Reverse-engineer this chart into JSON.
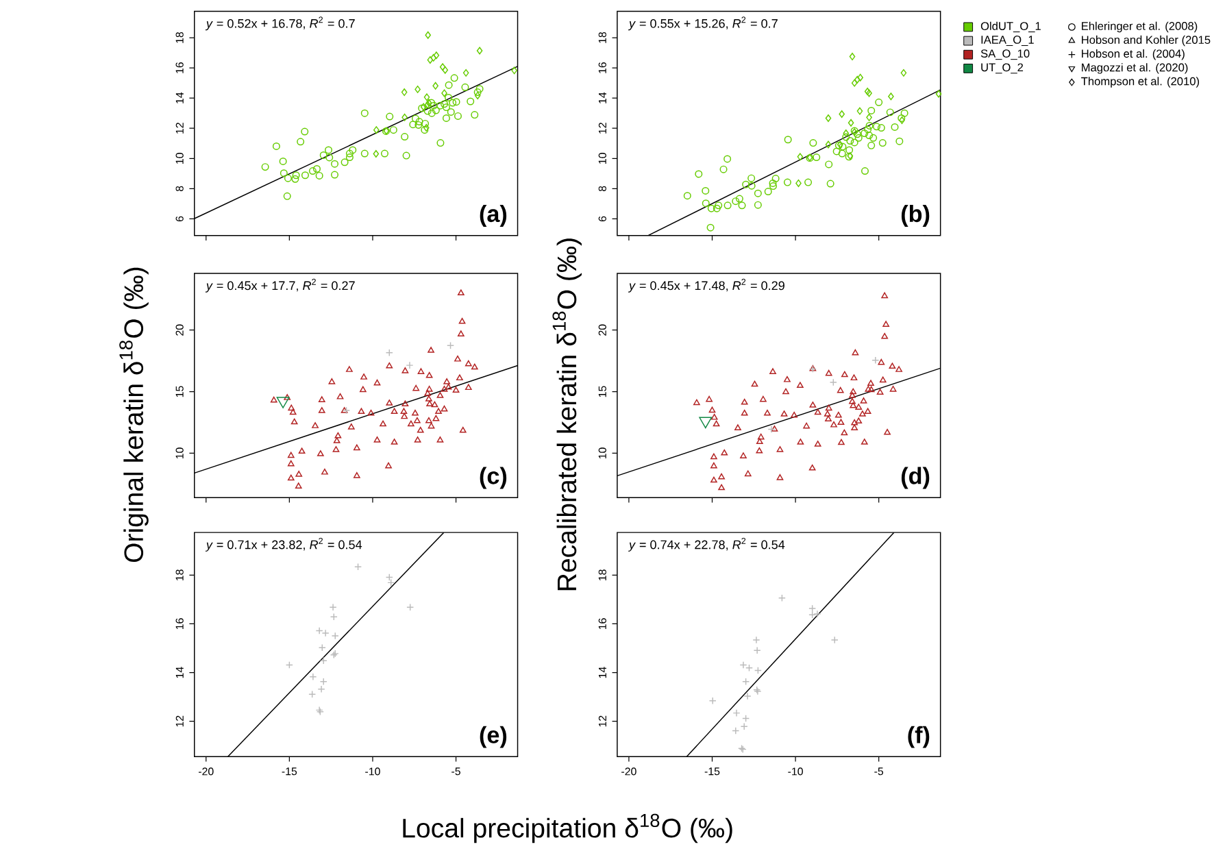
{
  "chart_data": [
    {
      "type": "scatter",
      "xlim": [
        -20.7,
        -1.3
      ],
      "ylim": [
        4.9,
        19.75
      ],
      "xticks": [
        -20,
        -15,
        -10,
        -5
      ],
      "yticks": [
        6,
        8,
        10,
        12,
        14,
        16,
        18
      ],
      "tick_labels": "y",
      "annotations": [
        "*y* = 0.52x + 16.78, *R*$^{2}$ = 0.7",
        "(a)"
      ],
      "series": [
        {
          "color": "#66cc00",
          "marker": "circle",
          "x": [
            -16.45,
            -15.78,
            -15.38,
            -15.33,
            -15.08,
            -15.13,
            -14.65,
            -14.6,
            -14.33,
            -14.08,
            -14.05,
            -13.6,
            -13.35,
            -13.2,
            -12.95,
            -12.65,
            -12.6,
            -12.28,
            -12.28,
            -11.68,
            -11.38,
            -11.38,
            -11.2,
            -10.48,
            -10.48,
            -9.28,
            -8.98,
            -8.75,
            -9.2,
            -8.08,
            -7.98,
            -7.58,
            -7.43,
            -7.25,
            -6.85,
            -6.88,
            -5.93,
            -6.48,
            -6.2,
            -5.95,
            -5.58,
            -5.58,
            -5.45,
            -5.3,
            -5.1,
            -4.98,
            -4.88,
            -4.45,
            -4.13,
            -3.88,
            -3.7,
            -3.58,
            -5.43,
            -5.7,
            -6.33,
            -7.05,
            -6.7,
            -7.2,
            -6.45,
            -5.2
          ],
          "values": [
            9.44,
            10.81,
            9.81,
            9.03,
            8.69,
            7.5,
            8.64,
            8.89,
            11.11,
            11.78,
            8.89,
            9.17,
            9.31,
            8.86,
            10.22,
            10.56,
            10.06,
            9.64,
            8.92,
            9.75,
            10.08,
            10.33,
            10.56,
            13.0,
            10.33,
            10.33,
            12.78,
            11.89,
            11.81,
            11.44,
            10.19,
            12.25,
            12.64,
            12.22,
            12.31,
            11.89,
            11.03,
            13.69,
            13.19,
            13.5,
            12.67,
            13.39,
            14.03,
            13.08,
            15.33,
            13.75,
            12.81,
            14.72,
            13.78,
            12.89,
            14.39,
            14.61,
            14.86,
            13.61,
            13.5,
            13.33,
            13.14,
            12.44,
            13.0,
            13.69
          ]
        },
        {
          "color": "#66cc00",
          "marker": "diamond",
          "x": [
            -6.68,
            -6.55,
            -6.35,
            -6.18,
            -5.8,
            -5.65,
            -4.4,
            -3.58,
            -1.5,
            -8.1,
            -7.3,
            -6.23,
            -5.7,
            -6.75,
            -6.63,
            -6.95,
            -8.08,
            -9.78,
            -9.18,
            -9.8,
            -6.78,
            -3.7,
            -6.7
          ],
          "values": [
            18.17,
            16.53,
            16.67,
            16.83,
            16.06,
            15.86,
            15.67,
            17.14,
            15.83,
            14.39,
            14.58,
            14.81,
            14.33,
            14.06,
            13.69,
            13.42,
            12.72,
            11.89,
            11.83,
            10.31,
            12.03,
            14.17,
            13.56
          ]
        },
        {
          "type": "line",
          "color": "#000000",
          "x": [
            -20.7,
            -1.3
          ],
          "values": [
            6.02,
            16.1
          ]
        }
      ]
    },
    {
      "type": "scatter",
      "xlim": [
        -20.7,
        -1.3
      ],
      "ylim": [
        4.9,
        19.75
      ],
      "xticks": [
        -20,
        -15,
        -10,
        -5
      ],
      "yticks": [
        6,
        8,
        10,
        12,
        14,
        16,
        18
      ],
      "tick_labels": "y",
      "annotations": [
        "*y* = 0.55x + 15.26, *R*$^{2}$ = 0.7",
        "(b)"
      ],
      "series": [
        {
          "color": "#66cc00",
          "marker": "circle",
          "x": [
            -16.49,
            -15.81,
            -15.4,
            -15.38,
            -15.1,
            -15.05,
            -14.72,
            -14.62,
            -14.32,
            -14.09,
            -14.07,
            -13.59,
            -13.36,
            -13.21,
            -12.98,
            -12.65,
            -12.63,
            -12.25,
            -12.25,
            -11.64,
            -11.34,
            -11.36,
            -11.19,
            -10.45,
            -10.48,
            -9.24,
            -8.94,
            -8.74,
            -9.14,
            -8.0,
            -7.9,
            -7.53,
            -7.4,
            -7.2,
            -6.77,
            -6.79,
            -5.83,
            -6.46,
            -6.21,
            -5.86,
            -5.45,
            -5.58,
            -5.56,
            -5.33,
            -5.0,
            -4.85,
            -4.77,
            -4.32,
            -4.04,
            -3.76,
            -3.46,
            -3.64,
            -5.45,
            -5.66,
            -6.29,
            -6.97,
            -6.72,
            -7.17,
            -6.46,
            -5.13
          ],
          "values": [
            7.53,
            8.97,
            7.86,
            7.03,
            5.42,
            6.69,
            6.69,
            6.89,
            9.28,
            9.97,
            6.89,
            7.17,
            7.33,
            6.89,
            8.28,
            8.69,
            8.19,
            7.69,
            6.92,
            7.81,
            8.17,
            8.36,
            8.67,
            11.25,
            8.42,
            8.42,
            11.03,
            10.08,
            10.03,
            9.61,
            8.33,
            10.47,
            10.86,
            10.33,
            10.56,
            10.11,
            9.17,
            11.83,
            11.36,
            11.67,
            10.86,
            11.53,
            12.17,
            11.36,
            13.72,
            12.03,
            11.03,
            13.06,
            12.08,
            11.14,
            13.0,
            12.67,
            13.17,
            11.92,
            11.61,
            11.42,
            11.17,
            10.78,
            11.06,
            12.11
          ]
        },
        {
          "color": "#66cc00",
          "marker": "diamond",
          "x": [
            -6.59,
            -6.46,
            -6.29,
            -6.11,
            -5.68,
            -5.58,
            -4.27,
            -3.51,
            -1.41,
            -8.03,
            -7.22,
            -6.14,
            -5.58,
            -6.67,
            -6.97,
            -7.32,
            -8.03,
            -9.72,
            -9.14,
            -9.82,
            -6.72,
            -3.61,
            -6.46
          ],
          "values": [
            16.75,
            15.0,
            15.22,
            15.36,
            14.44,
            14.33,
            14.11,
            15.67,
            14.28,
            12.67,
            12.94,
            13.14,
            12.72,
            12.36,
            11.67,
            10.92,
            10.92,
            10.11,
            10.06,
            8.36,
            10.17,
            12.53,
            11.75
          ]
        },
        {
          "type": "line",
          "color": "#000000",
          "x": [
            -18.84,
            -1.3
          ],
          "values": [
            4.9,
            14.55
          ]
        }
      ]
    },
    {
      "type": "scatter",
      "xlim": [
        -20.7,
        -1.3
      ],
      "ylim": [
        6.4,
        24.6
      ],
      "xticks": [
        -20,
        -15,
        -10,
        -5
      ],
      "yticks": [
        10,
        15,
        20
      ],
      "tick_labels": "y",
      "ylabel": "Original keratin δ$^{18}$O (‰)",
      "annotations": [
        "*y* = 0.45x + 17.7, *R*$^{2}$ = 0.27",
        "(c)"
      ],
      "series": [
        {
          "color": "#b22222",
          "marker": "triangle",
          "x": [
            -4.7,
            -4.63,
            -4.7,
            -6.5,
            -4.9,
            -4.25,
            -3.88,
            -9.0,
            -8.05,
            -7.1,
            -6.6,
            -4.78,
            -11.4,
            -10.53,
            -9.73,
            -12.45,
            -10.58,
            -11.95,
            -13.05,
            -15.93,
            -15.13,
            -14.88,
            -14.78,
            -14.7,
            -13.05,
            -11.7,
            -10.68,
            -10.1,
            -13.45,
            -11.28,
            -9.38,
            -9.0,
            -8.7,
            -8.05,
            -8.13,
            -8.1,
            -7.4,
            -6.6,
            -6.63,
            -6.58,
            -6.28,
            -5.95,
            -5.55,
            -5.45,
            -5.0,
            -4.25,
            -6.05,
            -5.7,
            -7.45,
            -7.7,
            -7.33,
            -7.13,
            -6.63,
            -6.48,
            -6.2,
            -4.58,
            -5.95,
            -7.3,
            -8.7,
            -9.73,
            -12.08,
            -12.15,
            -12.2,
            -10.95,
            -13.13,
            -14.25,
            -14.9,
            -14.9,
            -12.88,
            -10.95,
            -9.05,
            -14.9,
            -14.43,
            -14.45,
            -5.7,
            -6.7
          ],
          "values": [
            22.99,
            20.68,
            19.66,
            18.33,
            17.62,
            17.24,
            16.97,
            17.07,
            16.67,
            16.6,
            16.29,
            16.09,
            16.77,
            16.16,
            15.68,
            15.78,
            15.14,
            14.56,
            14.32,
            14.29,
            14.49,
            13.64,
            13.3,
            12.52,
            13.44,
            13.44,
            13.37,
            13.23,
            12.21,
            12.11,
            12.35,
            14.05,
            13.37,
            13.98,
            13.37,
            12.96,
            15.24,
            15.17,
            14.39,
            13.98,
            13.91,
            14.66,
            15.78,
            15.34,
            15.1,
            15.31,
            13.37,
            13.57,
            13.23,
            12.35,
            12.62,
            11.84,
            12.62,
            12.18,
            12.79,
            11.84,
            11.05,
            11.05,
            10.88,
            11.05,
            11.39,
            10.99,
            10.27,
            10.41,
            9.93,
            10.14,
            9.8,
            9.12,
            8.44,
            8.16,
            8.95,
            7.96,
            8.27,
            7.31,
            15.17,
            14.83
          ]
        },
        {
          "color": "#bbbbbb",
          "marker": "cross",
          "x": [
            -9.0,
            -7.78,
            -5.33,
            -11.58
          ],
          "values": [
            18.16,
            17.14,
            18.74,
            13.47
          ]
        },
        {
          "color": "#118844",
          "marker": "triangle down",
          "x": [
            -15.38
          ],
          "values": [
            14.25
          ]
        },
        {
          "type": "line",
          "color": "#000000",
          "x": [
            -20.7,
            -1.3
          ],
          "values": [
            8.39,
            17.12
          ]
        }
      ]
    },
    {
      "type": "scatter",
      "xlim": [
        -20.7,
        -1.3
      ],
      "ylim": [
        6.4,
        24.6
      ],
      "xticks": [
        -20,
        -15,
        -10,
        -5
      ],
      "yticks": [
        10,
        15,
        20
      ],
      "tick_labels": "y",
      "ylabel": "Recalibrated keratin δ$^{18}$O (‰)",
      "annotations": [
        "*y* = 0.45x + 17.48, *R*$^{2}$ = 0.29",
        "(d)"
      ],
      "series": [
        {
          "color": "#b22222",
          "marker": "triangle",
          "x": [
            -4.65,
            -4.57,
            -4.65,
            -6.41,
            -4.85,
            -4.19,
            -3.79,
            -8.96,
            -8.0,
            -7.05,
            -6.49,
            -4.75,
            -11.36,
            -10.5,
            -9.72,
            -12.45,
            -10.58,
            -11.94,
            -13.06,
            -15.93,
            -15.18,
            -15.0,
            -14.87,
            -14.75,
            -13.06,
            -11.69,
            -10.68,
            -10.08,
            -13.46,
            -11.26,
            -9.34,
            -8.96,
            -8.66,
            -8.0,
            -8.08,
            -8.03,
            -7.3,
            -6.54,
            -6.59,
            -6.54,
            -6.21,
            -5.91,
            -5.48,
            -5.45,
            -4.92,
            -4.14,
            -5.98,
            -5.66,
            -7.42,
            -7.7,
            -7.27,
            -7.07,
            -6.46,
            -6.46,
            -6.21,
            -4.49,
            -5.86,
            -7.25,
            -8.66,
            -9.7,
            -12.07,
            -12.15,
            -12.17,
            -10.93,
            -13.13,
            -14.27,
            -14.9,
            -14.9,
            -12.85,
            -10.93,
            -8.99,
            -14.9,
            -14.44,
            -14.44,
            -5.63,
            -6.59
          ],
          "values": [
            22.76,
            20.44,
            19.46,
            18.13,
            17.35,
            17.04,
            16.77,
            16.84,
            16.46,
            16.36,
            16.09,
            15.92,
            16.6,
            15.95,
            15.48,
            15.58,
            14.97,
            14.35,
            14.12,
            14.08,
            14.35,
            13.47,
            12.89,
            12.35,
            13.23,
            13.23,
            13.16,
            13.06,
            12.04,
            11.94,
            12.18,
            13.88,
            13.3,
            13.64,
            13.16,
            12.76,
            15.07,
            14.97,
            14.18,
            13.84,
            13.71,
            14.22,
            15.65,
            15.14,
            14.93,
            15.17,
            13.16,
            13.37,
            13.06,
            12.28,
            12.48,
            11.63,
            12.45,
            12.04,
            12.59,
            11.67,
            10.88,
            10.85,
            10.71,
            10.88,
            11.29,
            10.92,
            10.17,
            10.27,
            9.76,
            10.0,
            9.69,
            8.95,
            8.3,
            7.99,
            8.78,
            7.79,
            8.06,
            7.18,
            15.17,
            14.66
          ]
        },
        {
          "color": "#bbbbbb",
          "marker": "cross",
          "x": [
            -8.96,
            -7.73,
            -5.2,
            -11.44
          ],
          "values": [
            16.84,
            15.75,
            17.55,
            11.94
          ]
        },
        {
          "color": "#118844",
          "marker": "triangle down",
          "x": [
            -15.4
          ],
          "values": [
            12.62
          ]
        },
        {
          "type": "line",
          "color": "#000000",
          "x": [
            -20.7,
            -1.3
          ],
          "values": [
            8.17,
            16.9
          ]
        }
      ]
    },
    {
      "type": "scatter",
      "xlim": [
        -20.7,
        -1.3
      ],
      "ylim": [
        10.55,
        19.75
      ],
      "xticks": [
        -20,
        -15,
        -10,
        -5
      ],
      "yticks": [
        12,
        14,
        16,
        18
      ],
      "xlabel": "Local precipitation δ$^{18}$O (‰)",
      "annotations": [
        "*y* = 0.71x + 23.82, *R*$^{2}$ = 0.54",
        "(e)"
      ],
      "series": [
        {
          "color": "#bbbbbb",
          "marker": "cross",
          "x": [
            -10.88,
            -9.0,
            -8.9,
            -12.38,
            -12.33,
            -13.2,
            -12.83,
            -12.25,
            -13.03,
            -12.33,
            -12.95,
            -15.0,
            -13.58,
            -12.95,
            -13.08,
            -13.63,
            -13.2,
            -13.15,
            -7.75,
            -12.25
          ],
          "values": [
            18.34,
            17.91,
            17.69,
            16.68,
            16.29,
            15.72,
            15.62,
            15.51,
            15.02,
            14.73,
            14.49,
            14.31,
            13.83,
            13.63,
            13.32,
            13.11,
            12.46,
            12.39,
            16.68,
            14.78
          ]
        },
        {
          "type": "line",
          "color": "#000000",
          "x": [
            -18.69,
            -5.73
          ],
          "values": [
            10.55,
            19.75
          ]
        }
      ]
    },
    {
      "type": "scatter",
      "xlim": [
        -20.7,
        -1.3
      ],
      "ylim": [
        10.55,
        19.75
      ],
      "xticks": [
        -20,
        -15,
        -10,
        -5
      ],
      "yticks": [
        12,
        14,
        16,
        18
      ],
      "annotations": [
        "*y* = 0.74x + 22.78, *R*$^{2}$ = 0.54",
        "(f)"
      ],
      "series": [
        {
          "color": "#bbbbbb",
          "marker": "cross",
          "x": [
            -10.81,
            -8.99,
            -8.99,
            -8.69,
            -12.35,
            -12.3,
            -13.13,
            -12.78,
            -12.25,
            -12.98,
            -12.32,
            -12.27,
            -12.88,
            -14.97,
            -13.54,
            -12.98,
            -13.08,
            -13.59,
            -13.23,
            -13.16,
            -7.65
          ],
          "values": [
            17.06,
            16.63,
            16.37,
            16.41,
            15.34,
            14.91,
            14.31,
            14.19,
            14.09,
            13.63,
            13.29,
            13.23,
            13.03,
            12.84,
            12.34,
            12.12,
            11.79,
            11.61,
            10.89,
            10.85,
            15.34
          ]
        },
        {
          "type": "line",
          "color": "#000000",
          "x": [
            -16.53,
            -4.09
          ],
          "values": [
            10.55,
            19.75
          ]
        }
      ]
    },
    {
      "type": "other",
      "series": [
        {
          "name": "OldUT_O_1",
          "color": "#66cc00"
        },
        {
          "name": "IAEA_O_1",
          "color": "#bbbbbb"
        },
        {
          "name": "SA_O_10",
          "color": "#b22222"
        },
        {
          "name": "UT_O_2",
          "color": "#118844"
        },
        {
          "name": "Ehleringer et al. (2008)",
          "marker": "circle"
        },
        {
          "name": "Hobson and Kohler (2015",
          "marker": "triangle"
        },
        {
          "name": "Hobson et al. (2004)",
          "marker": "cross"
        },
        {
          "name": "Magozzi et al. (2020)",
          "marker": "triangle down"
        },
        {
          "name": "Thompson et al. (2010)",
          "marker": "diamond"
        }
      ]
    }
  ]
}
